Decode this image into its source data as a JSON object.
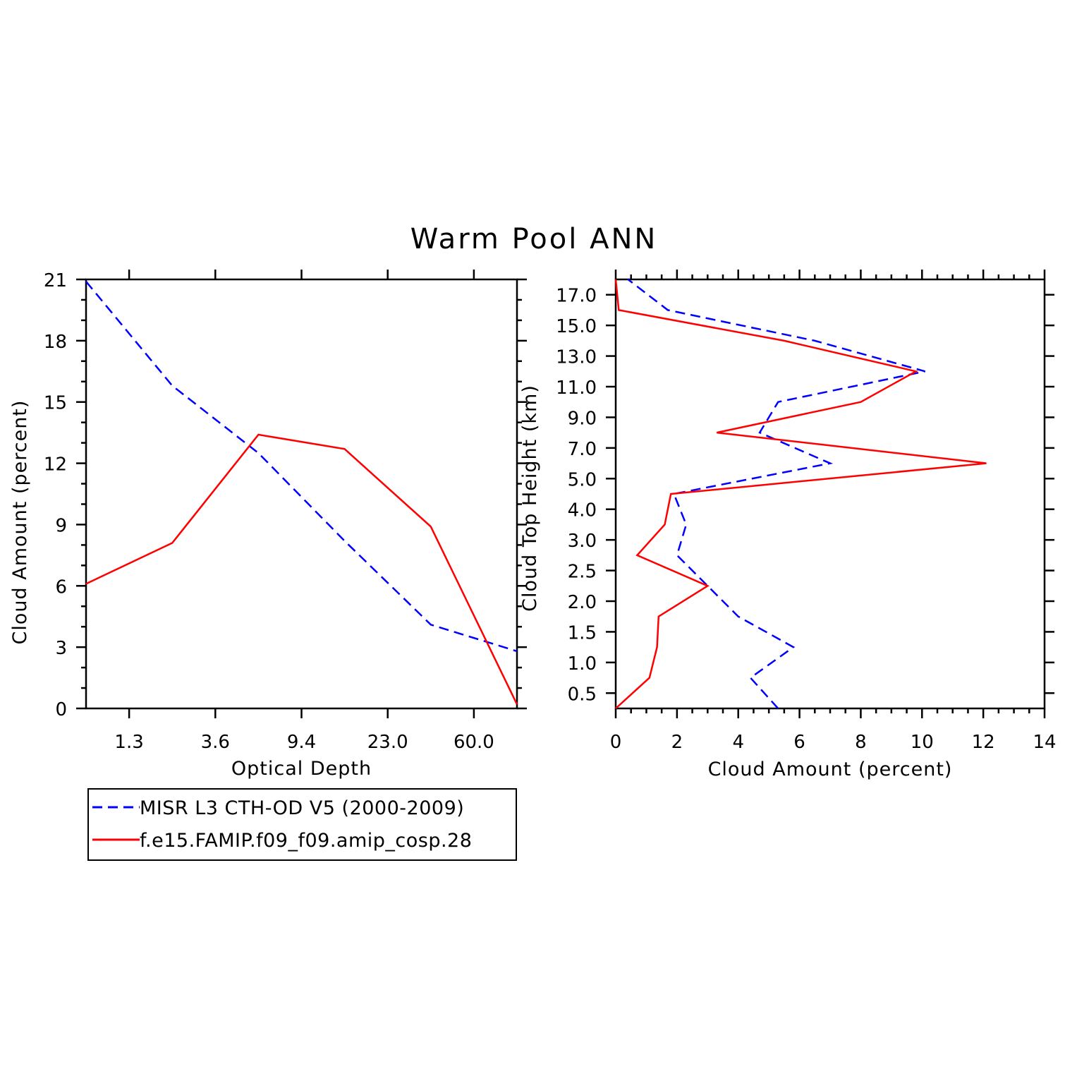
{
  "title": "Warm Pool ANN",
  "colors": {
    "obs": "#0000ff",
    "model": "#ff0000",
    "axis": "#000000"
  },
  "legend": {
    "placement": "bottom-left",
    "entries": [
      {
        "label": "MISR L3 CTH-OD V5 (2000-2009)",
        "color": "#0000ff",
        "style": "dashed"
      },
      {
        "label": "f.e15.FAMIP.f09_f09.amip_cosp.28",
        "color": "#ff0000",
        "style": "solid"
      }
    ]
  },
  "chart_data": [
    {
      "type": "line",
      "xlabel": "Optical Depth",
      "ylabel": "Cloud Amount (percent)",
      "x_tick_labels": [
        "1.3",
        "3.6",
        "9.4",
        "23.0",
        "60.0"
      ],
      "x_index_range": [
        0,
        5
      ],
      "x_tick_index": [
        0.5,
        1.5,
        2.5,
        3.5,
        4.5
      ],
      "ylim": [
        0,
        21
      ],
      "y_ticks": [
        "0",
        "3",
        "6",
        "9",
        "12",
        "15",
        "18",
        "21"
      ],
      "y_tick_values": [
        0,
        3,
        6,
        9,
        12,
        15,
        18,
        21
      ],
      "x_index": [
        0,
        1,
        2,
        3,
        4,
        5
      ],
      "series": [
        {
          "name": "MISR L3 CTH-OD V5 (2000-2009)",
          "values": [
            20.9,
            15.8,
            12.5,
            8.2,
            4.1,
            2.8
          ]
        },
        {
          "name": "f.e15.FAMIP.f09_f09.amip_cosp.28",
          "values": [
            6.1,
            8.1,
            13.4,
            12.7,
            8.9,
            0.2
          ]
        }
      ]
    },
    {
      "type": "line",
      "xlabel": "Cloud Amount (percent)",
      "ylabel": "Cloud Top Height (km)",
      "xlim": [
        0,
        14
      ],
      "x_ticks": [
        "0",
        "2",
        "4",
        "6",
        "8",
        "10",
        "12",
        "14"
      ],
      "x_tick_values": [
        0,
        2,
        4,
        6,
        8,
        10,
        12,
        14
      ],
      "y_tick_labels": [
        "0.5",
        "1.0",
        "1.5",
        "2.0",
        "2.5",
        "3.0",
        "4.0",
        "5.0",
        "7.0",
        "9.0",
        "11.0",
        "13.0",
        "15.0",
        "17.0"
      ],
      "y_index_range": [
        0,
        14
      ],
      "y_tick_index": [
        0.5,
        1.5,
        2.5,
        3.5,
        4.5,
        5.5,
        6.5,
        7.5,
        8.5,
        9.5,
        10.5,
        11.5,
        12.5,
        13.5
      ],
      "y_index": [
        0,
        1,
        2,
        3,
        4,
        5,
        6,
        7,
        8,
        9,
        10,
        11,
        12,
        13,
        14
      ],
      "series": [
        {
          "name": "MISR L3 CTH-OD V5 (2000-2009)",
          "values": [
            5.3,
            4.4,
            5.8,
            4.0,
            3.0,
            2.0,
            2.3,
            1.9,
            7.0,
            4.7,
            5.3,
            10.1,
            6.5,
            1.7,
            0.4
          ]
        },
        {
          "name": "f.e15.FAMIP.f09_f09.amip_cosp.28",
          "values": [
            0.0,
            1.1,
            1.35,
            1.4,
            3.0,
            0.7,
            1.6,
            1.8,
            12.1,
            3.3,
            8.0,
            9.8,
            5.5,
            0.1,
            0.0
          ]
        }
      ]
    }
  ]
}
